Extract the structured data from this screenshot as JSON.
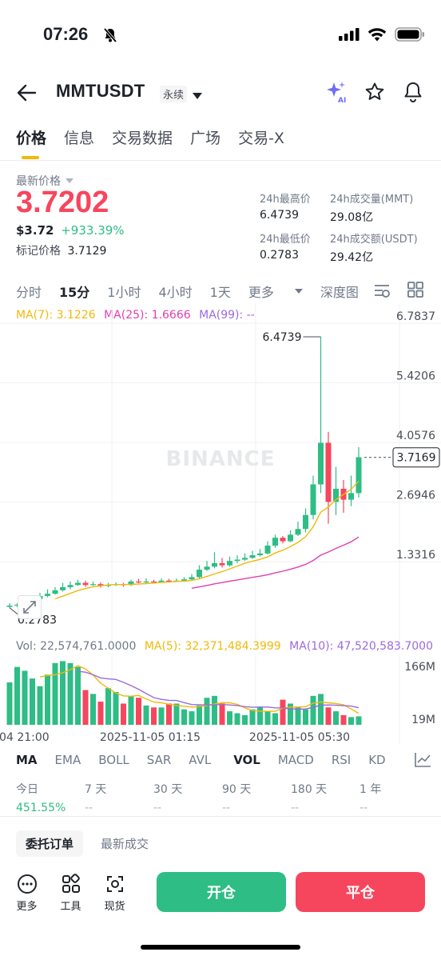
{
  "status": {
    "time": "07:26"
  },
  "header": {
    "symbol": "MMTUSDT",
    "contract_type": "永续"
  },
  "tabs": [
    "价格",
    "信息",
    "交易数据",
    "广场",
    "交易-X"
  ],
  "price": {
    "label": "最新价格",
    "last": "3.7202",
    "usd": "$3.72",
    "change": "+933.39%",
    "mark_label": "标记价格",
    "mark": "3.7129"
  },
  "stats": {
    "high_label": "24h最高价",
    "high": "6.4739",
    "low_label": "24h最低价",
    "low": "0.2783",
    "vol_mmt_label": "24h成交量(MMT)",
    "vol_mmt": "29.08亿",
    "vol_usdt_label": "24h成交额(USDT)",
    "vol_usdt": "29.42亿"
  },
  "intervals": [
    "分时",
    "15分",
    "1小时",
    "4小时",
    "1天",
    "更多",
    "深度图"
  ],
  "ma": {
    "ma7": "MA(7): 3.1226",
    "ma25": "MA(25): 1.6666",
    "ma99": "MA(99): --"
  },
  "volume": {
    "vol": "Vol: 22,574,761.0000",
    "ma5": "MA(5): 32,371,484.3999",
    "ma10": "MA(10): 47,520,583.7000"
  },
  "indicators": [
    "MA",
    "EMA",
    "BOLL",
    "SAR",
    "AVL",
    "VOL",
    "MACD",
    "RSI",
    "KD"
  ],
  "performance": [
    {
      "label": "今日",
      "value": "451.55%"
    },
    {
      "label": "7 天",
      "value": "--"
    },
    {
      "label": "30 天",
      "value": "--"
    },
    {
      "label": "90 天",
      "value": "--"
    },
    {
      "label": "180 天",
      "value": "--"
    },
    {
      "label": "1 年",
      "value": "--"
    }
  ],
  "order_tabs": [
    "委托订单",
    "最新成交"
  ],
  "bottom": {
    "more": "更多",
    "tools": "工具",
    "spot": "现货",
    "open": "开仓",
    "close": "平仓"
  },
  "colors": {
    "up": "#2ebd85",
    "down": "#f6465d",
    "ma7": "#f0b90b",
    "ma25": "#e040b0",
    "ma99": "#9c6ade",
    "accent": "#f0b90b"
  },
  "chart_data": {
    "type": "candlestick",
    "watermark": "BINANCE",
    "y_ticks": [
      "6.7837",
      "5.4206",
      "4.0576",
      "2.6946",
      "1.3316"
    ],
    "ylim": [
      0.0,
      6.7837
    ],
    "current_price_label": "3.7169",
    "current_price": 3.7169,
    "high_annotation": "6.4739",
    "low_annotation": "0.2783",
    "x_ticks": [
      "-04 21:00",
      "2025-11-05 01:15",
      "2025-11-05 05:30"
    ],
    "volume_ticks": [
      "166M",
      "19M"
    ],
    "candles": [
      {
        "o": 0.3,
        "c": 0.33,
        "h": 0.38,
        "l": 0.28
      },
      {
        "o": 0.33,
        "c": 0.35,
        "h": 0.38,
        "l": 0.3
      },
      {
        "o": 0.35,
        "c": 0.4,
        "h": 0.45,
        "l": 0.33
      },
      {
        "o": 0.4,
        "c": 0.48,
        "h": 0.55,
        "l": 0.38
      },
      {
        "o": 0.48,
        "c": 0.55,
        "h": 0.62,
        "l": 0.45
      },
      {
        "o": 0.55,
        "c": 0.6,
        "h": 0.7,
        "l": 0.52
      },
      {
        "o": 0.6,
        "c": 0.68,
        "h": 0.75,
        "l": 0.58
      },
      {
        "o": 0.68,
        "c": 0.75,
        "h": 0.85,
        "l": 0.65
      },
      {
        "o": 0.75,
        "c": 0.8,
        "h": 0.88,
        "l": 0.7
      },
      {
        "o": 0.8,
        "c": 0.85,
        "h": 0.92,
        "l": 0.78
      },
      {
        "o": 0.85,
        "c": 0.8,
        "h": 0.9,
        "l": 0.76
      },
      {
        "o": 0.8,
        "c": 0.82,
        "h": 0.88,
        "l": 0.78
      },
      {
        "o": 0.82,
        "c": 0.78,
        "h": 0.86,
        "l": 0.74
      },
      {
        "o": 0.78,
        "c": 0.8,
        "h": 0.85,
        "l": 0.75
      },
      {
        "o": 0.8,
        "c": 0.82,
        "h": 0.86,
        "l": 0.78
      },
      {
        "o": 0.82,
        "c": 0.8,
        "h": 0.85,
        "l": 0.76
      },
      {
        "o": 0.8,
        "c": 0.88,
        "h": 0.92,
        "l": 0.78
      },
      {
        "o": 0.88,
        "c": 0.86,
        "h": 0.94,
        "l": 0.84
      },
      {
        "o": 0.86,
        "c": 0.88,
        "h": 0.95,
        "l": 0.84
      },
      {
        "o": 0.88,
        "c": 0.87,
        "h": 0.92,
        "l": 0.85
      },
      {
        "o": 0.87,
        "c": 0.9,
        "h": 0.95,
        "l": 0.86
      },
      {
        "o": 0.9,
        "c": 0.88,
        "h": 0.94,
        "l": 0.86
      },
      {
        "o": 0.88,
        "c": 0.9,
        "h": 0.95,
        "l": 0.87
      },
      {
        "o": 0.9,
        "c": 0.93,
        "h": 0.98,
        "l": 0.88
      },
      {
        "o": 0.93,
        "c": 0.98,
        "h": 1.05,
        "l": 0.9
      },
      {
        "o": 0.98,
        "c": 1.15,
        "h": 1.25,
        "l": 0.95
      },
      {
        "o": 1.15,
        "c": 1.22,
        "h": 1.35,
        "l": 1.12
      },
      {
        "o": 1.22,
        "c": 1.3,
        "h": 1.55,
        "l": 1.18
      },
      {
        "o": 1.3,
        "c": 1.25,
        "h": 1.42,
        "l": 1.2
      },
      {
        "o": 1.25,
        "c": 1.35,
        "h": 1.45,
        "l": 1.22
      },
      {
        "o": 1.35,
        "c": 1.38,
        "h": 1.48,
        "l": 1.3
      },
      {
        "o": 1.38,
        "c": 1.42,
        "h": 1.52,
        "l": 1.35
      },
      {
        "o": 1.42,
        "c": 1.48,
        "h": 1.58,
        "l": 1.4
      },
      {
        "o": 1.48,
        "c": 1.52,
        "h": 1.62,
        "l": 1.45
      },
      {
        "o": 1.52,
        "c": 1.7,
        "h": 1.8,
        "l": 1.5
      },
      {
        "o": 1.7,
        "c": 1.88,
        "h": 1.95,
        "l": 1.65
      },
      {
        "o": 1.88,
        "c": 1.8,
        "h": 1.92,
        "l": 1.75
      },
      {
        "o": 1.8,
        "c": 1.95,
        "h": 2.05,
        "l": 1.78
      },
      {
        "o": 1.95,
        "c": 2.08,
        "h": 2.25,
        "l": 1.92
      },
      {
        "o": 2.08,
        "c": 2.4,
        "h": 2.55,
        "l": 2.0
      },
      {
        "o": 2.4,
        "c": 3.1,
        "h": 3.3,
        "l": 2.3
      },
      {
        "o": 3.1,
        "c": 4.05,
        "h": 6.4739,
        "l": 2.9
      },
      {
        "o": 4.05,
        "c": 2.7,
        "h": 4.3,
        "l": 2.2
      },
      {
        "o": 2.7,
        "c": 3.0,
        "h": 3.5,
        "l": 2.4
      },
      {
        "o": 3.0,
        "c": 2.75,
        "h": 3.2,
        "l": 2.45
      },
      {
        "o": 2.75,
        "c": 2.9,
        "h": 3.3,
        "l": 2.6
      },
      {
        "o": 2.9,
        "c": 3.72,
        "h": 3.95,
        "l": 2.8
      }
    ],
    "volumes": [
      110,
      150,
      140,
      120,
      100,
      130,
      160,
      165,
      160,
      150,
      90,
      80,
      60,
      95,
      85,
      55,
      75,
      70,
      50,
      45,
      45,
      55,
      55,
      40,
      35,
      50,
      70,
      75,
      55,
      35,
      30,
      25,
      40,
      45,
      35,
      30,
      65,
      55,
      45,
      40,
      75,
      80,
      45,
      35,
      25,
      20,
      22
    ]
  }
}
